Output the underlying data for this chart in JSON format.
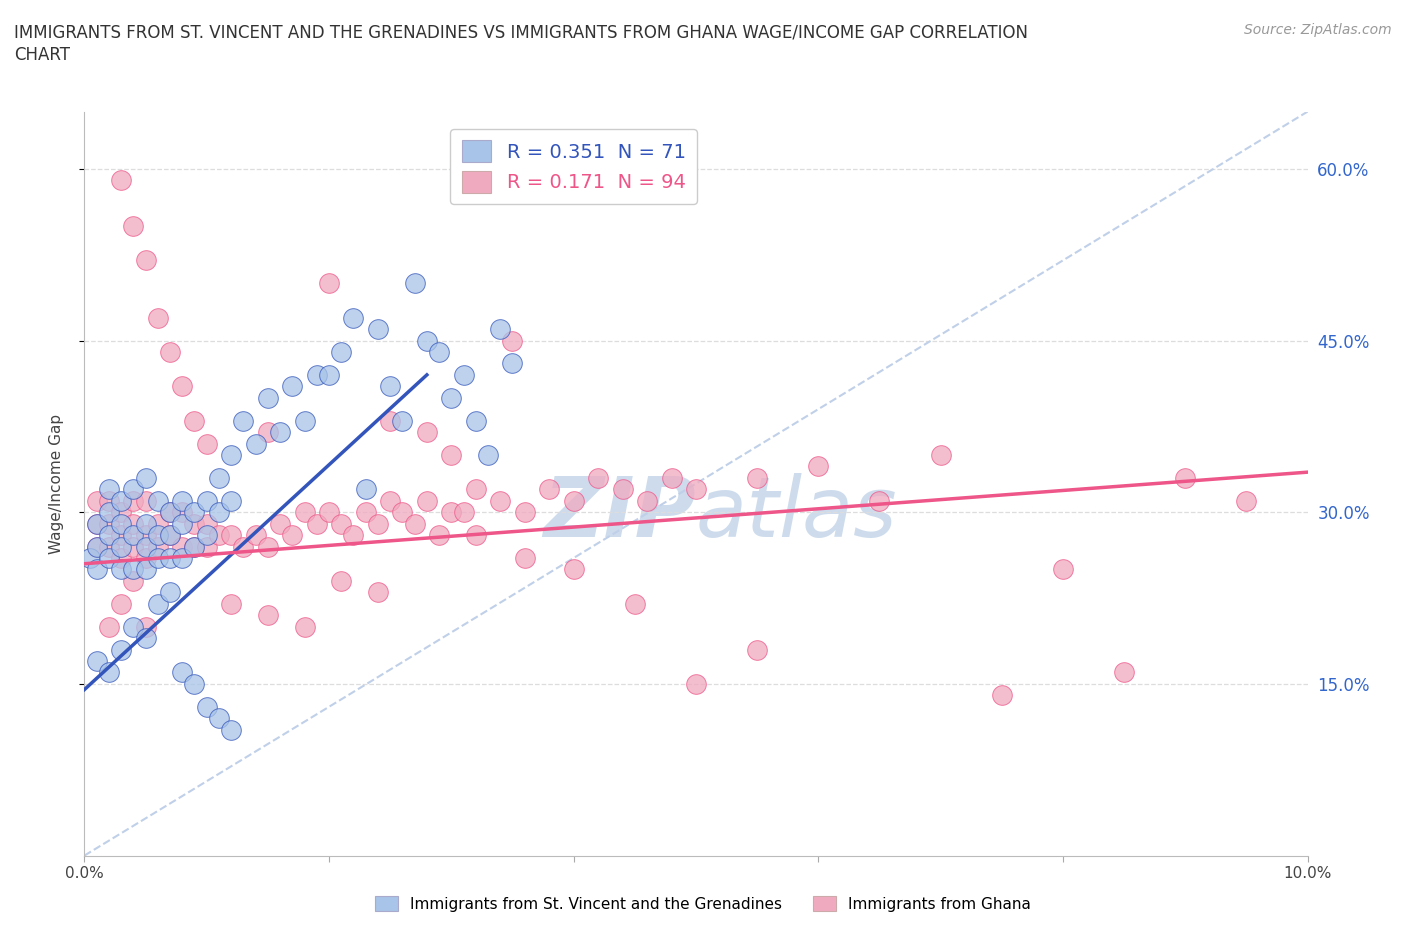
{
  "title": "IMMIGRANTS FROM ST. VINCENT AND THE GRENADINES VS IMMIGRANTS FROM GHANA WAGE/INCOME GAP CORRELATION\nCHART",
  "source_text": "Source: ZipAtlas.com",
  "ylabel": "Wage/Income Gap",
  "xlim": [
    0.0,
    0.1
  ],
  "ylim": [
    0.0,
    0.65
  ],
  "x_tick_labels": [
    "0.0%",
    "",
    "",
    "",
    "",
    "10.0%"
  ],
  "y_tick_labels": [
    "15.0%",
    "30.0%",
    "45.0%",
    "60.0%"
  ],
  "y_ticks": [
    0.15,
    0.3,
    0.45,
    0.6
  ],
  "legend1_label": "R = 0.351  N = 71",
  "legend2_label": "R = 0.171  N = 94",
  "series1_color": "#a8c4e8",
  "series2_color": "#f0aac0",
  "line1_color": "#3355bb",
  "line2_color": "#ee5588",
  "diagonal_color": "#c0d0e8",
  "watermark_color": "#c8d8ea",
  "blue_line_x0": 0.0,
  "blue_line_y0": 0.145,
  "blue_line_x1": 0.028,
  "blue_line_y1": 0.42,
  "pink_line_x0": 0.0,
  "pink_line_y0": 0.255,
  "pink_line_x1": 0.1,
  "pink_line_y1": 0.335,
  "blue_x": [
    0.0005,
    0.001,
    0.001,
    0.001,
    0.002,
    0.002,
    0.002,
    0.002,
    0.003,
    0.003,
    0.003,
    0.003,
    0.004,
    0.004,
    0.004,
    0.005,
    0.005,
    0.005,
    0.005,
    0.006,
    0.006,
    0.006,
    0.007,
    0.007,
    0.007,
    0.008,
    0.008,
    0.008,
    0.009,
    0.009,
    0.01,
    0.01,
    0.011,
    0.011,
    0.012,
    0.012,
    0.013,
    0.014,
    0.015,
    0.016,
    0.017,
    0.018,
    0.019,
    0.02,
    0.021,
    0.022,
    0.023,
    0.024,
    0.025,
    0.026,
    0.027,
    0.028,
    0.029,
    0.03,
    0.031,
    0.032,
    0.033,
    0.034,
    0.035,
    0.001,
    0.002,
    0.003,
    0.004,
    0.005,
    0.006,
    0.007,
    0.008,
    0.009,
    0.01,
    0.011,
    0.012
  ],
  "blue_y": [
    0.26,
    0.25,
    0.27,
    0.29,
    0.26,
    0.28,
    0.3,
    0.32,
    0.25,
    0.27,
    0.29,
    0.31,
    0.25,
    0.28,
    0.32,
    0.25,
    0.27,
    0.29,
    0.33,
    0.26,
    0.28,
    0.31,
    0.26,
    0.28,
    0.3,
    0.26,
    0.29,
    0.31,
    0.27,
    0.3,
    0.28,
    0.31,
    0.3,
    0.33,
    0.31,
    0.35,
    0.38,
    0.36,
    0.4,
    0.37,
    0.41,
    0.38,
    0.42,
    0.42,
    0.44,
    0.47,
    0.32,
    0.46,
    0.41,
    0.38,
    0.5,
    0.45,
    0.44,
    0.4,
    0.42,
    0.38,
    0.35,
    0.46,
    0.43,
    0.17,
    0.16,
    0.18,
    0.2,
    0.19,
    0.22,
    0.23,
    0.16,
    0.15,
    0.13,
    0.12,
    0.11
  ],
  "pink_x": [
    0.001,
    0.001,
    0.001,
    0.002,
    0.002,
    0.002,
    0.003,
    0.003,
    0.003,
    0.004,
    0.004,
    0.004,
    0.005,
    0.005,
    0.005,
    0.006,
    0.006,
    0.007,
    0.007,
    0.008,
    0.008,
    0.009,
    0.009,
    0.01,
    0.01,
    0.011,
    0.012,
    0.013,
    0.014,
    0.015,
    0.016,
    0.017,
    0.018,
    0.019,
    0.02,
    0.021,
    0.022,
    0.023,
    0.024,
    0.025,
    0.026,
    0.027,
    0.028,
    0.029,
    0.03,
    0.031,
    0.032,
    0.034,
    0.036,
    0.038,
    0.04,
    0.042,
    0.044,
    0.046,
    0.048,
    0.05,
    0.055,
    0.06,
    0.065,
    0.07,
    0.075,
    0.08,
    0.085,
    0.09,
    0.095,
    0.003,
    0.004,
    0.005,
    0.006,
    0.007,
    0.008,
    0.009,
    0.01,
    0.012,
    0.015,
    0.018,
    0.021,
    0.024,
    0.028,
    0.032,
    0.036,
    0.04,
    0.045,
    0.05,
    0.055,
    0.015,
    0.02,
    0.025,
    0.03,
    0.035,
    0.002,
    0.003,
    0.004,
    0.005
  ],
  "pink_y": [
    0.27,
    0.29,
    0.31,
    0.27,
    0.29,
    0.31,
    0.26,
    0.28,
    0.3,
    0.27,
    0.29,
    0.31,
    0.26,
    0.28,
    0.31,
    0.27,
    0.29,
    0.28,
    0.3,
    0.27,
    0.3,
    0.27,
    0.29,
    0.27,
    0.29,
    0.28,
    0.28,
    0.27,
    0.28,
    0.27,
    0.29,
    0.28,
    0.3,
    0.29,
    0.3,
    0.29,
    0.28,
    0.3,
    0.29,
    0.31,
    0.3,
    0.29,
    0.31,
    0.28,
    0.3,
    0.3,
    0.32,
    0.31,
    0.3,
    0.32,
    0.31,
    0.33,
    0.32,
    0.31,
    0.33,
    0.32,
    0.33,
    0.34,
    0.31,
    0.35,
    0.14,
    0.25,
    0.16,
    0.33,
    0.31,
    0.59,
    0.55,
    0.52,
    0.47,
    0.44,
    0.41,
    0.38,
    0.36,
    0.22,
    0.21,
    0.2,
    0.24,
    0.23,
    0.37,
    0.28,
    0.26,
    0.25,
    0.22,
    0.15,
    0.18,
    0.37,
    0.5,
    0.38,
    0.35,
    0.45,
    0.2,
    0.22,
    0.24,
    0.2
  ]
}
